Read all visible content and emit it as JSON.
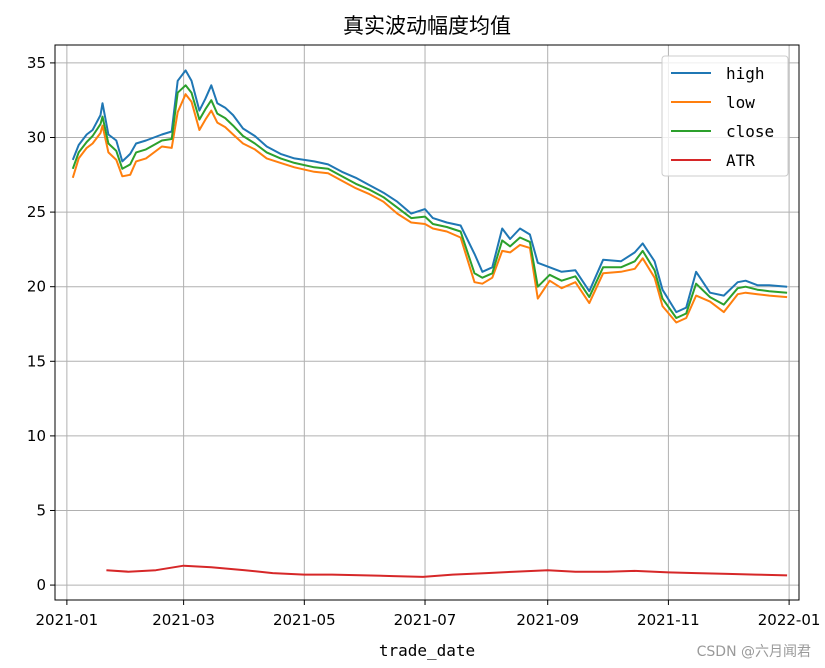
{
  "chart_data": {
    "type": "line",
    "title": "真实波动幅度均值",
    "xlabel": "trade_date",
    "ylabel": "",
    "x_range": [
      "2020-12-26",
      "2022-01-06"
    ],
    "ylim": [
      -1,
      36.2
    ],
    "grid": true,
    "legend_position": "top-right",
    "x_ticks": [
      "2021-01",
      "2021-03",
      "2021-05",
      "2021-07",
      "2021-09",
      "2021-11",
      "2022-01"
    ],
    "y_ticks": [
      0,
      5,
      10,
      15,
      20,
      25,
      30,
      35
    ],
    "series": [
      {
        "name": "high",
        "color": "#1f77b4",
        "points": [
          [
            "2021-01-04",
            28.5
          ],
          [
            "2021-01-07",
            29.5
          ],
          [
            "2021-01-11",
            30.2
          ],
          [
            "2021-01-14",
            30.5
          ],
          [
            "2021-01-18",
            31.5
          ],
          [
            "2021-01-19",
            32.3
          ],
          [
            "2021-01-22",
            30.2
          ],
          [
            "2021-01-26",
            29.8
          ],
          [
            "2021-01-29",
            28.4
          ],
          [
            "2021-02-02",
            28.9
          ],
          [
            "2021-02-05",
            29.6
          ],
          [
            "2021-02-10",
            29.8
          ],
          [
            "2021-02-18",
            30.2
          ],
          [
            "2021-02-23",
            30.4
          ],
          [
            "2021-02-26",
            33.8
          ],
          [
            "2021-03-02",
            34.5
          ],
          [
            "2021-03-05",
            33.8
          ],
          [
            "2021-03-09",
            31.8
          ],
          [
            "2021-03-12",
            32.6
          ],
          [
            "2021-03-15",
            33.5
          ],
          [
            "2021-03-18",
            32.3
          ],
          [
            "2021-03-22",
            32.0
          ],
          [
            "2021-03-26",
            31.5
          ],
          [
            "2021-03-31",
            30.6
          ],
          [
            "2021-04-06",
            30.1
          ],
          [
            "2021-04-12",
            29.4
          ],
          [
            "2021-04-19",
            28.9
          ],
          [
            "2021-04-26",
            28.6
          ],
          [
            "2021-05-06",
            28.4
          ],
          [
            "2021-05-13",
            28.2
          ],
          [
            "2021-05-20",
            27.7
          ],
          [
            "2021-05-27",
            27.3
          ],
          [
            "2021-06-03",
            26.8
          ],
          [
            "2021-06-10",
            26.3
          ],
          [
            "2021-06-17",
            25.7
          ],
          [
            "2021-06-24",
            24.9
          ],
          [
            "2021-07-01",
            25.2
          ],
          [
            "2021-07-05",
            24.6
          ],
          [
            "2021-07-12",
            24.3
          ],
          [
            "2021-07-19",
            24.1
          ],
          [
            "2021-07-26",
            22.2
          ],
          [
            "2021-07-30",
            21.0
          ],
          [
            "2021-08-04",
            21.3
          ],
          [
            "2021-08-09",
            23.9
          ],
          [
            "2021-08-13",
            23.2
          ],
          [
            "2021-08-18",
            23.9
          ],
          [
            "2021-08-23",
            23.5
          ],
          [
            "2021-08-27",
            21.6
          ],
          [
            "2021-09-02",
            21.3
          ],
          [
            "2021-09-08",
            21.0
          ],
          [
            "2021-09-15",
            21.1
          ],
          [
            "2021-09-22",
            19.7
          ],
          [
            "2021-09-29",
            21.8
          ],
          [
            "2021-10-08",
            21.7
          ],
          [
            "2021-10-15",
            22.3
          ],
          [
            "2021-10-19",
            22.9
          ],
          [
            "2021-10-25",
            21.7
          ],
          [
            "2021-10-29",
            19.8
          ],
          [
            "2021-11-05",
            18.3
          ],
          [
            "2021-11-10",
            18.6
          ],
          [
            "2021-11-15",
            21.0
          ],
          [
            "2021-11-22",
            19.6
          ],
          [
            "2021-11-29",
            19.4
          ],
          [
            "2021-12-06",
            20.3
          ],
          [
            "2021-12-10",
            20.4
          ],
          [
            "2021-12-16",
            20.1
          ],
          [
            "2021-12-22",
            20.1
          ],
          [
            "2021-12-31",
            20.0
          ]
        ]
      },
      {
        "name": "low",
        "color": "#ff7f0e",
        "points": [
          [
            "2021-01-04",
            27.3
          ],
          [
            "2021-01-07",
            28.6
          ],
          [
            "2021-01-11",
            29.3
          ],
          [
            "2021-01-14",
            29.6
          ],
          [
            "2021-01-18",
            30.3
          ],
          [
            "2021-01-19",
            30.8
          ],
          [
            "2021-01-22",
            29.0
          ],
          [
            "2021-01-26",
            28.5
          ],
          [
            "2021-01-29",
            27.4
          ],
          [
            "2021-02-02",
            27.5
          ],
          [
            "2021-02-05",
            28.4
          ],
          [
            "2021-02-10",
            28.6
          ],
          [
            "2021-02-18",
            29.4
          ],
          [
            "2021-02-23",
            29.3
          ],
          [
            "2021-02-26",
            31.7
          ],
          [
            "2021-03-02",
            32.9
          ],
          [
            "2021-03-05",
            32.4
          ],
          [
            "2021-03-09",
            30.5
          ],
          [
            "2021-03-12",
            31.2
          ],
          [
            "2021-03-15",
            31.8
          ],
          [
            "2021-03-18",
            31.0
          ],
          [
            "2021-03-22",
            30.7
          ],
          [
            "2021-03-26",
            30.2
          ],
          [
            "2021-03-31",
            29.6
          ],
          [
            "2021-04-06",
            29.2
          ],
          [
            "2021-04-12",
            28.6
          ],
          [
            "2021-04-19",
            28.3
          ],
          [
            "2021-04-26",
            28.0
          ],
          [
            "2021-05-06",
            27.7
          ],
          [
            "2021-05-13",
            27.6
          ],
          [
            "2021-05-20",
            27.1
          ],
          [
            "2021-05-27",
            26.6
          ],
          [
            "2021-06-03",
            26.2
          ],
          [
            "2021-06-10",
            25.7
          ],
          [
            "2021-06-17",
            24.9
          ],
          [
            "2021-06-24",
            24.3
          ],
          [
            "2021-07-01",
            24.2
          ],
          [
            "2021-07-05",
            23.9
          ],
          [
            "2021-07-12",
            23.7
          ],
          [
            "2021-07-19",
            23.3
          ],
          [
            "2021-07-26",
            20.3
          ],
          [
            "2021-07-30",
            20.2
          ],
          [
            "2021-08-04",
            20.6
          ],
          [
            "2021-08-09",
            22.4
          ],
          [
            "2021-08-13",
            22.3
          ],
          [
            "2021-08-18",
            22.8
          ],
          [
            "2021-08-23",
            22.6
          ],
          [
            "2021-08-27",
            19.2
          ],
          [
            "2021-09-02",
            20.4
          ],
          [
            "2021-09-08",
            19.9
          ],
          [
            "2021-09-15",
            20.3
          ],
          [
            "2021-09-22",
            18.9
          ],
          [
            "2021-09-29",
            20.9
          ],
          [
            "2021-10-08",
            21.0
          ],
          [
            "2021-10-15",
            21.2
          ],
          [
            "2021-10-19",
            21.9
          ],
          [
            "2021-10-25",
            20.6
          ],
          [
            "2021-10-29",
            18.7
          ],
          [
            "2021-11-05",
            17.6
          ],
          [
            "2021-11-10",
            17.9
          ],
          [
            "2021-11-15",
            19.4
          ],
          [
            "2021-11-22",
            19.0
          ],
          [
            "2021-11-29",
            18.3
          ],
          [
            "2021-12-06",
            19.5
          ],
          [
            "2021-12-10",
            19.6
          ],
          [
            "2021-12-16",
            19.5
          ],
          [
            "2021-12-22",
            19.4
          ],
          [
            "2021-12-31",
            19.3
          ]
        ]
      },
      {
        "name": "close",
        "color": "#2ca02c",
        "points": [
          [
            "2021-01-04",
            27.9
          ],
          [
            "2021-01-07",
            29.0
          ],
          [
            "2021-01-11",
            29.7
          ],
          [
            "2021-01-14",
            30.1
          ],
          [
            "2021-01-18",
            30.9
          ],
          [
            "2021-01-19",
            31.4
          ],
          [
            "2021-01-22",
            29.6
          ],
          [
            "2021-01-26",
            29.1
          ],
          [
            "2021-01-29",
            27.9
          ],
          [
            "2021-02-02",
            28.2
          ],
          [
            "2021-02-05",
            29.0
          ],
          [
            "2021-02-10",
            29.2
          ],
          [
            "2021-02-18",
            29.8
          ],
          [
            "2021-02-23",
            29.9
          ],
          [
            "2021-02-26",
            33.0
          ],
          [
            "2021-03-02",
            33.5
          ],
          [
            "2021-03-05",
            33.0
          ],
          [
            "2021-03-09",
            31.2
          ],
          [
            "2021-03-12",
            31.9
          ],
          [
            "2021-03-15",
            32.5
          ],
          [
            "2021-03-18",
            31.6
          ],
          [
            "2021-03-22",
            31.3
          ],
          [
            "2021-03-26",
            30.8
          ],
          [
            "2021-03-31",
            30.1
          ],
          [
            "2021-04-06",
            29.6
          ],
          [
            "2021-04-12",
            29.0
          ],
          [
            "2021-04-19",
            28.6
          ],
          [
            "2021-04-26",
            28.3
          ],
          [
            "2021-05-06",
            28.0
          ],
          [
            "2021-05-13",
            27.9
          ],
          [
            "2021-05-20",
            27.4
          ],
          [
            "2021-05-27",
            26.9
          ],
          [
            "2021-06-03",
            26.5
          ],
          [
            "2021-06-10",
            26.0
          ],
          [
            "2021-06-17",
            25.3
          ],
          [
            "2021-06-24",
            24.6
          ],
          [
            "2021-07-01",
            24.7
          ],
          [
            "2021-07-05",
            24.2
          ],
          [
            "2021-07-12",
            24.0
          ],
          [
            "2021-07-19",
            23.7
          ],
          [
            "2021-07-26",
            20.9
          ],
          [
            "2021-07-30",
            20.6
          ],
          [
            "2021-08-04",
            20.9
          ],
          [
            "2021-08-09",
            23.1
          ],
          [
            "2021-08-13",
            22.7
          ],
          [
            "2021-08-18",
            23.3
          ],
          [
            "2021-08-23",
            23.0
          ],
          [
            "2021-08-27",
            20.0
          ],
          [
            "2021-09-02",
            20.8
          ],
          [
            "2021-09-08",
            20.4
          ],
          [
            "2021-09-15",
            20.7
          ],
          [
            "2021-09-22",
            19.3
          ],
          [
            "2021-09-29",
            21.3
          ],
          [
            "2021-10-08",
            21.3
          ],
          [
            "2021-10-15",
            21.7
          ],
          [
            "2021-10-19",
            22.4
          ],
          [
            "2021-10-25",
            21.1
          ],
          [
            "2021-10-29",
            19.2
          ],
          [
            "2021-11-05",
            17.9
          ],
          [
            "2021-11-10",
            18.2
          ],
          [
            "2021-11-15",
            20.2
          ],
          [
            "2021-11-22",
            19.3
          ],
          [
            "2021-11-29",
            18.8
          ],
          [
            "2021-12-06",
            19.9
          ],
          [
            "2021-12-10",
            20.0
          ],
          [
            "2021-12-16",
            19.8
          ],
          [
            "2021-12-22",
            19.7
          ],
          [
            "2021-12-31",
            19.6
          ]
        ]
      },
      {
        "name": "ATR",
        "color": "#d62728",
        "points": [
          [
            "2021-01-21",
            1.0
          ],
          [
            "2021-02-01",
            0.9
          ],
          [
            "2021-02-15",
            1.0
          ],
          [
            "2021-03-01",
            1.3
          ],
          [
            "2021-03-15",
            1.2
          ],
          [
            "2021-04-01",
            1.0
          ],
          [
            "2021-04-15",
            0.8
          ],
          [
            "2021-05-01",
            0.7
          ],
          [
            "2021-05-15",
            0.7
          ],
          [
            "2021-06-01",
            0.65
          ],
          [
            "2021-06-15",
            0.6
          ],
          [
            "2021-06-30",
            0.55
          ],
          [
            "2021-07-15",
            0.7
          ],
          [
            "2021-08-01",
            0.8
          ],
          [
            "2021-08-15",
            0.9
          ],
          [
            "2021-09-01",
            1.0
          ],
          [
            "2021-09-15",
            0.9
          ],
          [
            "2021-10-01",
            0.9
          ],
          [
            "2021-10-15",
            0.95
          ],
          [
            "2021-11-01",
            0.85
          ],
          [
            "2021-11-15",
            0.8
          ],
          [
            "2021-12-01",
            0.75
          ],
          [
            "2021-12-15",
            0.7
          ],
          [
            "2021-12-31",
            0.65
          ]
        ]
      }
    ]
  },
  "watermark": "CSDN @六月闻君"
}
